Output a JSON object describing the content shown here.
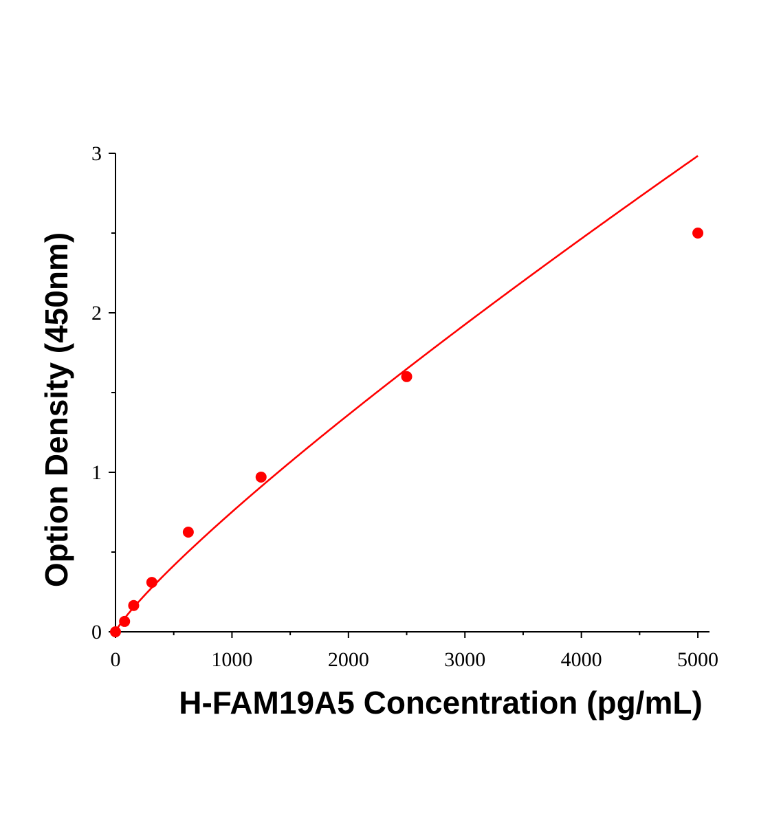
{
  "chart_data": {
    "type": "scatter",
    "xlabel": "H-FAM19A5 Concentration (pg/mL)",
    "ylabel": "Option Density (450nm)",
    "xlim": [
      0,
      5100
    ],
    "ylim": [
      0,
      3
    ],
    "x_ticks": [
      0,
      1000,
      2000,
      3000,
      4000,
      5000
    ],
    "x_minor_ticks": [
      500,
      1500,
      2500,
      3500,
      4500
    ],
    "y_ticks": [
      0,
      1,
      2,
      3
    ],
    "y_minor_ticks": [
      0.5,
      1.5,
      2.5
    ],
    "grid": false,
    "legend": "none",
    "series": [
      {
        "points": [
          {
            "x": 0,
            "y": 0.0
          },
          {
            "x": 78,
            "y": 0.065
          },
          {
            "x": 156,
            "y": 0.165
          },
          {
            "x": 312,
            "y": 0.31
          },
          {
            "x": 625,
            "y": 0.625
          },
          {
            "x": 1250,
            "y": 0.97
          },
          {
            "x": 2500,
            "y": 1.6
          },
          {
            "x": 5000,
            "y": 2.5
          }
        ],
        "fit": "power",
        "color": "#ff0000"
      }
    ]
  }
}
